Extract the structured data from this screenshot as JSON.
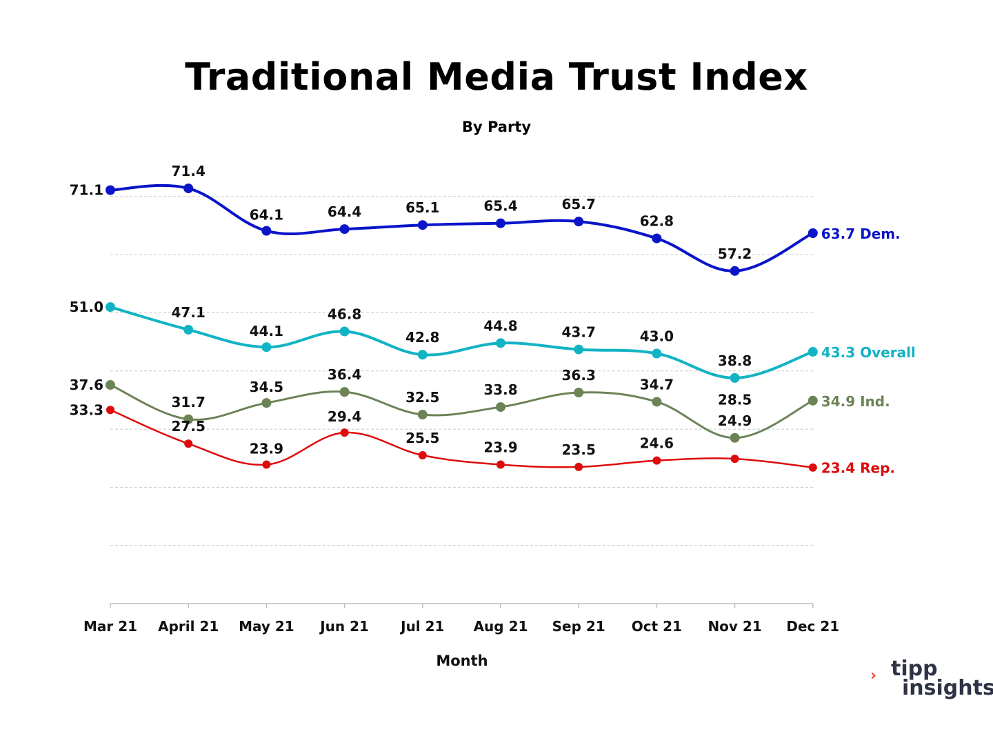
{
  "chart_data": {
    "type": "line",
    "title": "Traditional Media Trust Index",
    "subtitle": "By Party",
    "xlabel": "Month",
    "ylabel": "",
    "ylim": [
      0,
      80
    ],
    "grid": true,
    "categories": [
      "Mar 21",
      "April 21",
      "May 21",
      "Jun 21",
      "Jul 21",
      "Aug 21",
      "Sep 21",
      "Oct 21",
      "Nov 21",
      "Dec 21"
    ],
    "series": [
      {
        "name": "Dem.",
        "end_label": "63.7 Dem.",
        "color": "#0a14c8",
        "values": [
          71.1,
          71.4,
          64.1,
          64.4,
          65.1,
          65.4,
          65.7,
          62.8,
          57.2,
          63.7
        ],
        "labels": [
          "71.1",
          "71.4",
          "64.1",
          "64.4",
          "65.1",
          "65.4",
          "65.7",
          "62.8",
          "57.2",
          "63.7"
        ]
      },
      {
        "name": "Overall",
        "end_label": "43.3 Overall",
        "color": "#12b3c4",
        "values": [
          51.0,
          47.1,
          44.1,
          46.8,
          42.8,
          44.8,
          43.7,
          43.0,
          38.8,
          43.3
        ],
        "labels": [
          "51.0",
          "47.1",
          "44.1",
          "46.8",
          "42.8",
          "44.8",
          "43.7",
          "43.0",
          "38.8",
          "43.3"
        ]
      },
      {
        "name": "Ind.",
        "end_label": "34.9 Ind.",
        "color": "#6c8356",
        "values": [
          37.6,
          31.7,
          34.5,
          36.4,
          32.5,
          33.8,
          36.3,
          34.7,
          28.5,
          34.9
        ],
        "labels": [
          "37.6",
          "31.7",
          "34.5",
          "36.4",
          "32.5",
          "33.8",
          "36.3",
          "34.7",
          "28.5",
          "34.9"
        ]
      },
      {
        "name": "Rep.",
        "end_label": "23.4 Rep.",
        "color": "#dd0b0b",
        "values": [
          33.3,
          27.5,
          23.9,
          29.4,
          25.5,
          23.9,
          23.5,
          24.6,
          24.9,
          23.4
        ],
        "labels": [
          "33.3",
          "27.5",
          "23.9",
          "29.4",
          "25.5",
          "23.9",
          "23.5",
          "24.6",
          "24.9",
          "23.4"
        ]
      }
    ]
  },
  "brand": {
    "arrow": "›",
    "line1": "tipp",
    "line2": "insights"
  }
}
